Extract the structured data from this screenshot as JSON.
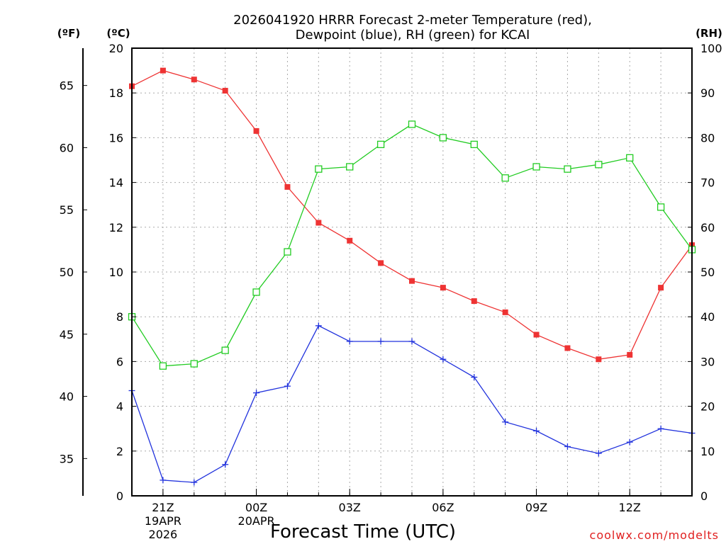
{
  "chart_data": {
    "type": "line",
    "title": [
      "2026041920 HRRR Forecast 2-meter Temperature (red),",
      "Dewpoint (blue), RH (green) for KCAI"
    ],
    "xlabel": "Forecast Time (UTC)",
    "credit": "coolwx.com/modelts",
    "units": {
      "fahrenheit": "(ºF)",
      "celsius": "(ºC)",
      "rh": "(RH)"
    },
    "x": [
      20,
      21,
      22,
      23,
      0,
      1,
      2,
      3,
      4,
      5,
      6,
      7,
      8,
      9,
      10,
      11,
      12,
      13,
      14
    ],
    "x_ticks": [
      {
        "label": "21Z",
        "sub1": "19APR",
        "sub2": "2026"
      },
      {
        "label": "00Z",
        "sub1": "20APR",
        "sub2": ""
      },
      {
        "label": "03Z",
        "sub1": "",
        "sub2": ""
      },
      {
        "label": "06Z",
        "sub1": "",
        "sub2": ""
      },
      {
        "label": "09Z",
        "sub1": "",
        "sub2": ""
      },
      {
        "label": "12Z",
        "sub1": "",
        "sub2": ""
      }
    ],
    "left_celsius_axis": {
      "range": [
        0,
        20
      ],
      "ticks": [
        0,
        2,
        4,
        6,
        8,
        10,
        12,
        14,
        16,
        18,
        20
      ]
    },
    "left_fahrenheit_axis": {
      "ticks": [
        35,
        40,
        45,
        50,
        55,
        60,
        65
      ]
    },
    "right_rh_axis": {
      "range": [
        0,
        100
      ],
      "ticks": [
        0,
        10,
        20,
        30,
        40,
        50,
        60,
        70,
        80,
        90,
        100
      ]
    },
    "series": [
      {
        "name": "2-meter Temperature",
        "axis": "celsius",
        "color": "#ee3333",
        "marker": "filled-square",
        "values": [
          18.3,
          19.0,
          18.6,
          18.1,
          16.3,
          13.8,
          12.2,
          11.4,
          10.4,
          9.6,
          9.3,
          8.7,
          8.2,
          7.2,
          6.6,
          6.1,
          6.3,
          9.3,
          11.2
        ]
      },
      {
        "name": "Dewpoint",
        "axis": "celsius",
        "color": "#2233dd",
        "marker": "plus",
        "values": [
          4.7,
          0.7,
          0.6,
          1.4,
          4.6,
          4.9,
          7.6,
          6.9,
          6.9,
          6.9,
          6.1,
          5.3,
          3.3,
          2.9,
          2.2,
          1.9,
          2.4,
          3.0,
          2.8
        ]
      },
      {
        "name": "RH",
        "axis": "rh",
        "color": "#22cc22",
        "marker": "open-square",
        "values": [
          40,
          29,
          29.5,
          32.5,
          45.5,
          54.5,
          73,
          73.5,
          78.5,
          83,
          80,
          78.5,
          71,
          73.5,
          73,
          74,
          75.5,
          64.5,
          55
        ]
      }
    ]
  }
}
